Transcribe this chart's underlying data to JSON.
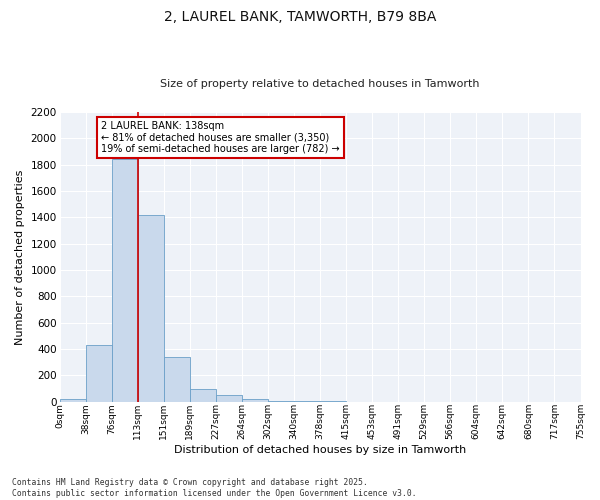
{
  "title": "2, LAUREL BANK, TAMWORTH, B79 8BA",
  "subtitle": "Size of property relative to detached houses in Tamworth",
  "xlabel": "Distribution of detached houses by size in Tamworth",
  "ylabel": "Number of detached properties",
  "bar_color": "#c9d9ec",
  "bar_edge_color": "#6a9fc8",
  "background_color": "#eef2f8",
  "grid_color": "#ffffff",
  "ylim": [
    0,
    2200
  ],
  "yticks": [
    0,
    200,
    400,
    600,
    800,
    1000,
    1200,
    1400,
    1600,
    1800,
    2000,
    2200
  ],
  "bin_labels": [
    "0sqm",
    "38sqm",
    "76sqm",
    "113sqm",
    "151sqm",
    "189sqm",
    "227sqm",
    "264sqm",
    "302sqm",
    "340sqm",
    "378sqm",
    "415sqm",
    "453sqm",
    "491sqm",
    "529sqm",
    "566sqm",
    "604sqm",
    "642sqm",
    "680sqm",
    "717sqm",
    "755sqm"
  ],
  "bar_values": [
    20,
    430,
    1840,
    1420,
    340,
    95,
    50,
    20,
    8,
    3,
    2,
    1,
    1,
    0,
    0,
    0,
    0,
    0,
    0,
    0
  ],
  "vline_position": 3,
  "vline_color": "#cc0000",
  "annotation_text": "2 LAUREL BANK: 138sqm\n← 81% of detached houses are smaller (3,350)\n19% of semi-detached houses are larger (782) →",
  "annotation_box_color": "#ffffff",
  "annotation_box_edge_color": "#cc0000",
  "footnote1": "Contains HM Land Registry data © Crown copyright and database right 2025.",
  "footnote2": "Contains public sector information licensed under the Open Government Licence v3.0.",
  "figure_bg": "#ffffff"
}
